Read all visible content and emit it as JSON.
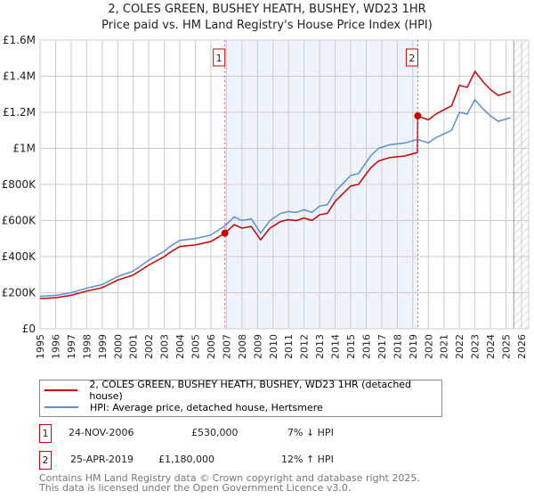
{
  "title_line1": "2, COLES GREEN, BUSHEY HEATH, BUSHEY, WD23 1HR",
  "title_line2": "Price paid vs. HM Land Registry's House Price Index (HPI)",
  "chart_data": {
    "type": "line",
    "title": "2, COLES GREEN, BUSHEY HEATH, BUSHEY, WD23 1HR — Price paid vs. HM Land Registry's House Price Index (HPI)",
    "xlim": [
      1995,
      2026
    ],
    "ylim": [
      0,
      1600000
    ],
    "x_ticks": [
      "1995",
      "1996",
      "1997",
      "1998",
      "1999",
      "2000",
      "2001",
      "2002",
      "2003",
      "2004",
      "2005",
      "2006",
      "2007",
      "2008",
      "2009",
      "2010",
      "2011",
      "2012",
      "2013",
      "2014",
      "2015",
      "2016",
      "2017",
      "2018",
      "2019",
      "2020",
      "2021",
      "2022",
      "2023",
      "2024",
      "2025",
      "2026"
    ],
    "y_ticks": [
      {
        "v": 0,
        "label": "£0"
      },
      {
        "v": 200000,
        "label": "£200K"
      },
      {
        "v": 400000,
        "label": "£400K"
      },
      {
        "v": 600000,
        "label": "£600K"
      },
      {
        "v": 800000,
        "label": "£800K"
      },
      {
        "v": 1000000,
        "label": "£1M"
      },
      {
        "v": 1200000,
        "label": "£1.2M"
      },
      {
        "v": 1400000,
        "label": "£1.4M"
      },
      {
        "v": 1600000,
        "label": "£1.6M"
      }
    ],
    "grid": true,
    "shaded_range": [
      2006.9,
      2019.32
    ],
    "hatched_from": 2025.5,
    "series": [
      {
        "name": "2, COLES GREEN, BUSHEY HEATH, BUSHEY, WD23 1HR (detached house)",
        "color": "#cc0000",
        "x": [
          1995,
          1996,
          1997,
          1998,
          1999,
          2000,
          2001,
          2002,
          2003,
          2003.3,
          2004,
          2005,
          2006,
          2006.9,
          2007.5,
          2008,
          2008.6,
          2009.2,
          2009.8,
          2010.5,
          2011,
          2011.5,
          2012,
          2012.5,
          2013,
          2013.5,
          2014,
          2015,
          2015.5,
          2016.3,
          2016.8,
          2017.5,
          2018.5,
          2019.3,
          2019.32,
          2020,
          2020.5,
          2021,
          2021.5,
          2022,
          2022.5,
          2023,
          2023.5,
          2024,
          2024.5,
          2025.3
        ],
        "y": [
          167000,
          172000,
          186000,
          209000,
          228000,
          270000,
          298000,
          353000,
          400000,
          420000,
          456000,
          465000,
          484000,
          530000,
          577000,
          558000,
          567000,
          493000,
          558000,
          595000,
          605000,
          600000,
          614000,
          600000,
          632000,
          640000,
          707000,
          791000,
          800000,
          893000,
          930000,
          949000,
          958000,
          977000,
          1180000,
          1158000,
          1191000,
          1214000,
          1236000,
          1349000,
          1338000,
          1427000,
          1371000,
          1326000,
          1293000,
          1315000
        ]
      },
      {
        "name": "HPI: Average price, detached house, Hertsmere",
        "color": "#5b8fd0",
        "x": [
          1995,
          1996,
          1997,
          1998,
          1999,
          2000,
          2001,
          2002,
          2003,
          2003.3,
          2004,
          2005,
          2006,
          2006.9,
          2007.5,
          2008,
          2008.6,
          2009.2,
          2009.8,
          2010.5,
          2011,
          2011.5,
          2012,
          2012.5,
          2013,
          2013.5,
          2014,
          2015,
          2015.5,
          2016.3,
          2016.8,
          2017.5,
          2018.5,
          2019.3,
          2020,
          2020.5,
          2021,
          2021.5,
          2022,
          2022.5,
          2023,
          2023.5,
          2024,
          2024.5,
          2025.3
        ],
        "y": [
          180000,
          185000,
          200000,
          225000,
          245000,
          290000,
          320000,
          380000,
          430000,
          452000,
          490000,
          500000,
          520000,
          570000,
          620000,
          600000,
          610000,
          530000,
          600000,
          640000,
          650000,
          645000,
          660000,
          645000,
          680000,
          688000,
          760000,
          850000,
          860000,
          960000,
          1000000,
          1020000,
          1030000,
          1050000,
          1030000,
          1060000,
          1080000,
          1100000,
          1200000,
          1190000,
          1270000,
          1220000,
          1180000,
          1150000,
          1170000
        ]
      }
    ],
    "markers": [
      {
        "label": "1",
        "x": 2006.9,
        "y": 530000
      },
      {
        "label": "2",
        "x": 2019.32,
        "y": 1180000
      }
    ]
  },
  "legend": {
    "items": [
      {
        "label": "2, COLES GREEN, BUSHEY HEATH, BUSHEY, WD23 1HR (detached house)",
        "color": "#cc0000"
      },
      {
        "label": "HPI: Average price, detached house, Hertsmere",
        "color": "#5b8fd0"
      }
    ]
  },
  "transactions": [
    {
      "num": "1",
      "date": "24-NOV-2006",
      "price": "£530,000",
      "hpi": "7% ↓ HPI"
    },
    {
      "num": "2",
      "date": "25-APR-2019",
      "price": "£1,180,000",
      "hpi": "12% ↑ HPI"
    }
  ],
  "footer": {
    "line1": "Contains HM Land Registry data © Crown copyright and database right 2025.",
    "line2": "This data is licensed under the Open Government Licence v3.0."
  }
}
